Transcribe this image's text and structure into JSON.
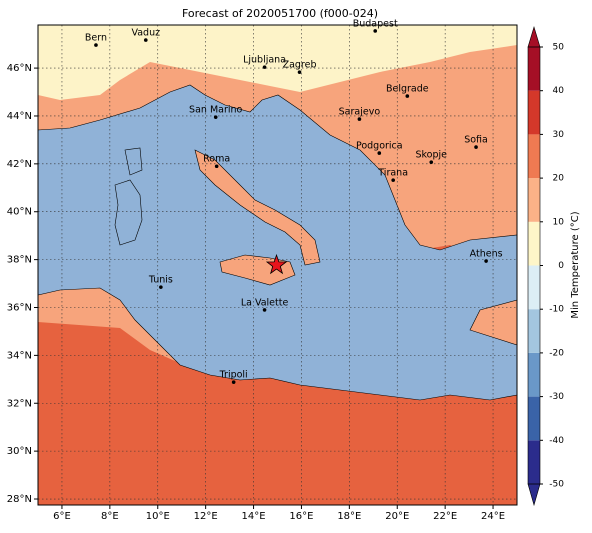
{
  "map": {
    "title": "Forecast of 2020051700 (f000-024)",
    "lonlim": [
      5,
      25
    ],
    "latlim": [
      27.75,
      47.8
    ],
    "lonticks": [
      {
        "value": 6,
        "label": "6°E"
      },
      {
        "value": 8,
        "label": "8°E"
      },
      {
        "value": 10,
        "label": "10°E"
      },
      {
        "value": 12,
        "label": "12°E"
      },
      {
        "value": 14,
        "label": "14°E"
      },
      {
        "value": 16,
        "label": "16°E"
      },
      {
        "value": 18,
        "label": "18°E"
      },
      {
        "value": 20,
        "label": "20°E"
      },
      {
        "value": 22,
        "label": "22°E"
      },
      {
        "value": 24,
        "label": "24°E"
      }
    ],
    "latticks": [
      {
        "value": 28,
        "label": "28°N"
      },
      {
        "value": 30,
        "label": "30°N"
      },
      {
        "value": 32,
        "label": "32°N"
      },
      {
        "value": 34,
        "label": "34°N"
      },
      {
        "value": 36,
        "label": "36°N"
      },
      {
        "value": 38,
        "label": "38°N"
      },
      {
        "value": 40,
        "label": "40°N"
      },
      {
        "value": 42,
        "label": "42°N"
      },
      {
        "value": 44,
        "label": "44°N"
      },
      {
        "value": 46,
        "label": "46°N"
      }
    ],
    "grid": true,
    "cities": [
      {
        "name": "Bern",
        "lon": 7.42,
        "lat": 46.96
      },
      {
        "name": "Vaduz",
        "lon": 9.5,
        "lat": 47.17
      },
      {
        "name": "Budapest",
        "lon": 19.08,
        "lat": 47.55
      },
      {
        "name": "Ljubljana",
        "lon": 14.46,
        "lat": 46.04
      },
      {
        "name": "Zagreb",
        "lon": 15.92,
        "lat": 45.83
      },
      {
        "name": "Belgrade",
        "lon": 20.42,
        "lat": 44.83
      },
      {
        "name": "San Marino",
        "lon": 12.42,
        "lat": 43.95
      },
      {
        "name": "Sarajevo",
        "lon": 18.42,
        "lat": 43.87
      },
      {
        "name": "Sofia",
        "lon": 23.29,
        "lat": 42.7
      },
      {
        "name": "Podgorica",
        "lon": 19.25,
        "lat": 42.45
      },
      {
        "name": "Skopje",
        "lon": 21.42,
        "lat": 42.07
      },
      {
        "name": "Roma",
        "lon": 12.46,
        "lat": 41.9
      },
      {
        "name": "Tirana",
        "lon": 19.83,
        "lat": 41.32
      },
      {
        "name": "Athens",
        "lon": 23.71,
        "lat": 37.94
      },
      {
        "name": "Tunis",
        "lon": 10.13,
        "lat": 36.85
      },
      {
        "name": "La Valette",
        "lon": 14.46,
        "lat": 35.9
      },
      {
        "name": "Tripoli",
        "lon": 13.17,
        "lat": 32.88
      }
    ],
    "marker": {
      "lon": 14.96,
      "lat": 37.77,
      "color": "#e8141c"
    }
  },
  "colorbar": {
    "label": "Min Temperature (°C)",
    "lim": [
      -50,
      50
    ],
    "ticks": [
      -50,
      -40,
      -30,
      -20,
      -10,
      0,
      10,
      20,
      30,
      40,
      50
    ],
    "colors": [
      "#2b2c8c",
      "#3a63a8",
      "#6a98c8",
      "#a3c6df",
      "#dceef5",
      "#fef6c8",
      "#fbb287",
      "#ef7a52",
      "#d4382a",
      "#a50f26"
    ]
  }
}
